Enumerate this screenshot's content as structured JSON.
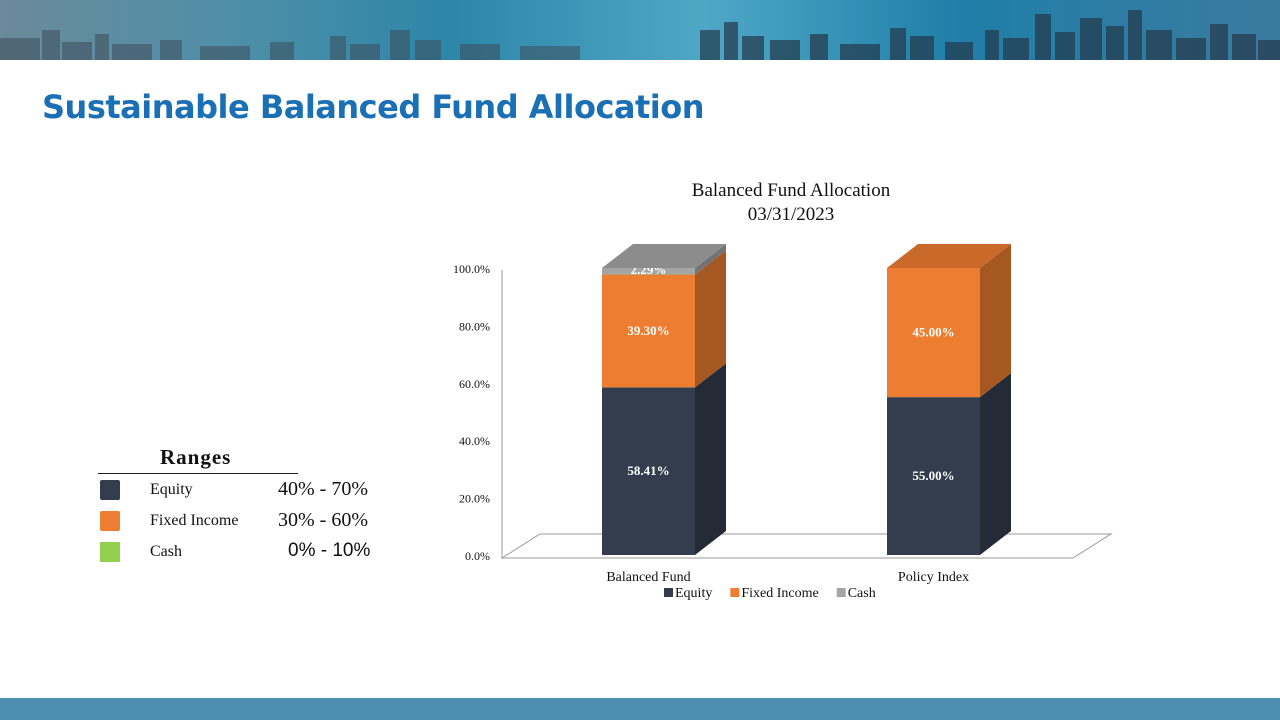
{
  "slide": {
    "title": "Sustainable Balanced Fund Allocation"
  },
  "ranges": {
    "title": "Ranges",
    "rows": [
      {
        "label": "Equity",
        "range": "40% - 70%",
        "color": "#333d4e"
      },
      {
        "label": "Fixed Income",
        "range": "30% - 60%",
        "color": "#ed7d31"
      },
      {
        "label": "Cash",
        "range": "0% - 10%",
        "color": "#92d050"
      }
    ]
  },
  "chart_data": {
    "type": "bar",
    "stacked": true,
    "three_d": true,
    "title": "Balanced Fund Allocation",
    "subtitle": "03/31/2023",
    "categories": [
      "Balanced Fund",
      "Policy Index"
    ],
    "series": [
      {
        "name": "Equity",
        "values": [
          58.41,
          55.0
        ],
        "labels": [
          "58.41%",
          "55.00%"
        ],
        "color": "#333d4e"
      },
      {
        "name": "Fixed Income",
        "values": [
          39.3,
          45.0
        ],
        "labels": [
          "39.30%",
          "45.00%"
        ],
        "color": "#ed7d31"
      },
      {
        "name": "Cash",
        "values": [
          2.29,
          0
        ],
        "labels": [
          "2.29%",
          ""
        ],
        "color": "#a5a5a5"
      }
    ],
    "ylim": [
      0,
      100
    ],
    "yticks": [
      0,
      20,
      40,
      60,
      80,
      100
    ],
    "ytick_labels": [
      "0.0%",
      "20.0%",
      "40.0%",
      "60.0%",
      "80.0%",
      "100.0%"
    ],
    "grid": false,
    "legend": "bottom"
  }
}
